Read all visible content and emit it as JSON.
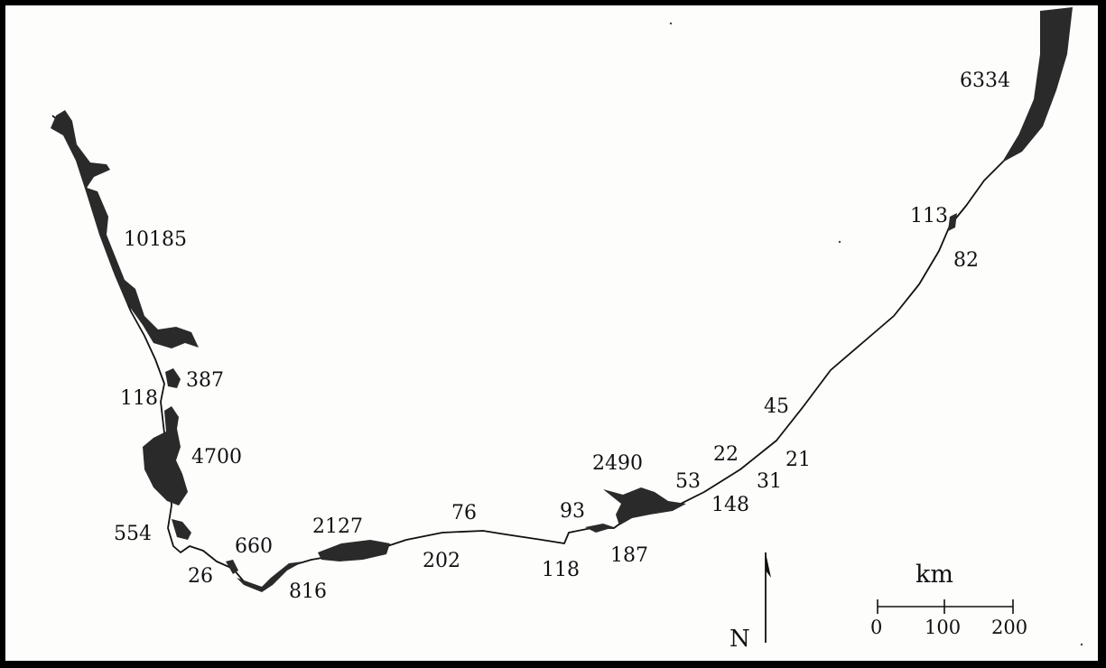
{
  "map": {
    "colors": {
      "land_fill": "#2a2a2a",
      "coast_line": "#111111",
      "background": "#fdfdfc",
      "border": "#000000"
    },
    "area_labels": [
      {
        "id": "6334",
        "text": "6334"
      },
      {
        "id": "10185",
        "text": "10185"
      },
      {
        "id": "113",
        "text": "113"
      },
      {
        "id": "82",
        "text": "82"
      },
      {
        "id": "387",
        "text": "387"
      },
      {
        "id": "118a",
        "text": "118"
      },
      {
        "id": "4700",
        "text": "4700"
      },
      {
        "id": "45",
        "text": "45"
      },
      {
        "id": "2490",
        "text": "2490"
      },
      {
        "id": "22",
        "text": "22"
      },
      {
        "id": "21",
        "text": "21"
      },
      {
        "id": "53",
        "text": "53"
      },
      {
        "id": "31",
        "text": "31"
      },
      {
        "id": "148",
        "text": "148"
      },
      {
        "id": "93",
        "text": "93"
      },
      {
        "id": "76",
        "text": "76"
      },
      {
        "id": "2127",
        "text": "2127"
      },
      {
        "id": "554",
        "text": "554"
      },
      {
        "id": "660",
        "text": "660"
      },
      {
        "id": "202",
        "text": "202"
      },
      {
        "id": "118b",
        "text": "118"
      },
      {
        "id": "187",
        "text": "187"
      },
      {
        "id": "26",
        "text": "26"
      },
      {
        "id": "816",
        "text": "816"
      }
    ],
    "scale_bar": {
      "unit": "km",
      "ticks": [
        "0",
        "100",
        "200"
      ]
    },
    "north_arrow": {
      "label": "N",
      "icon": "north-arrow-icon"
    }
  }
}
